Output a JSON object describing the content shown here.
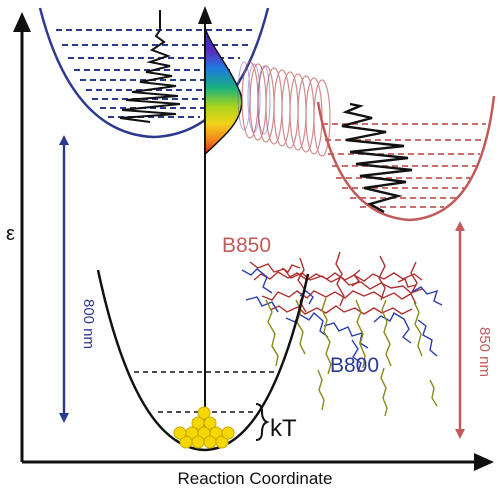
{
  "axes": {
    "y_label": "ε",
    "x_label": "Reaction Coordinate"
  },
  "labels": {
    "b850": "B850",
    "b800": "B800",
    "kt": "kT",
    "wavelength_800": "800 nm",
    "wavelength_850": "850 nm"
  },
  "colors": {
    "b800_blue": "#2b3a8f",
    "b850_red": "#c25a5a",
    "ground_black": "#111111",
    "molecule_red": "#b03030",
    "molecule_blue": "#2a3fb0",
    "molecule_olive": "#8a8a1a",
    "thermal_yellow": "#f5d800"
  }
}
